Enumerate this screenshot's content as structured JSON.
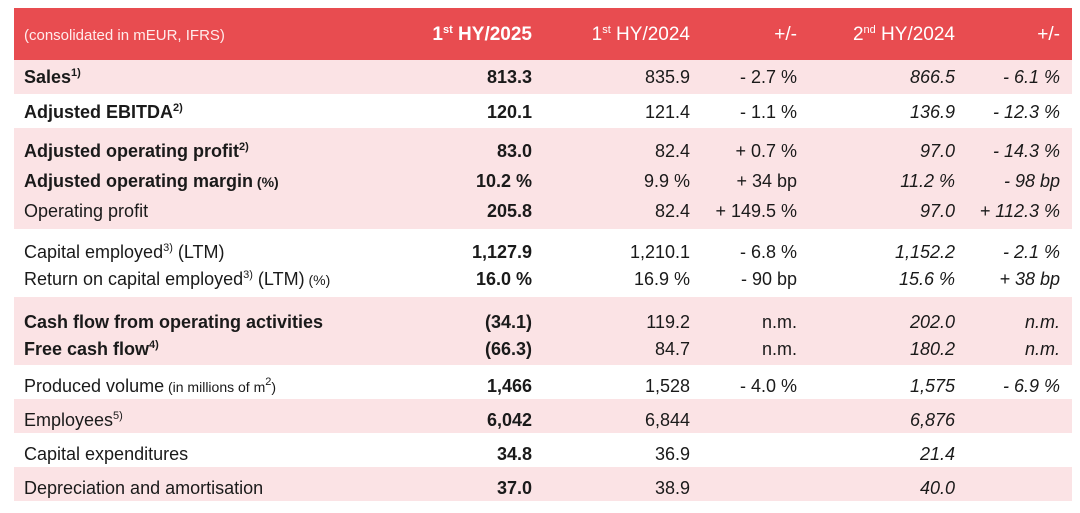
{
  "header": {
    "label": "(consolidated in mEUR, IFRS)",
    "col1_main": "1",
    "col1_sup": "st",
    "col1_rest": " HY/2025",
    "col2_main": "1",
    "col2_sup": "st",
    "col2_rest": " HY/2024",
    "col3": "+/-",
    "col4_main": "2",
    "col4_sup": "nd",
    "col4_rest": " HY/2024",
    "col5": "+/-"
  },
  "rows": [
    {
      "label": "Sales",
      "sup": "1)",
      "hy2025": "813.3",
      "hy2024": "835.9",
      "chg1": "- 2.7 %",
      "hy2024_2": "866.5",
      "chg2": "- 6.1 %"
    },
    {
      "label": "Adjusted EBITDA",
      "sup": "2)",
      "hy2025": "120.1",
      "hy2024": "121.4",
      "chg1": "- 1.1 %",
      "hy2024_2": "136.9",
      "chg2": "- 12.3 %"
    },
    {
      "label": "Adjusted operating profit",
      "sup": "2)",
      "hy2025": "83.0",
      "hy2024": "82.4",
      "chg1": "+ 0.7 %",
      "hy2024_2": "97.0",
      "chg2": "- 14.3 %"
    },
    {
      "label": "Adjusted operating margin",
      "unit": " (%)",
      "hy2025": "10.2 %",
      "hy2024": "9.9 %",
      "chg1": "+ 34 bp",
      "hy2024_2": "11.2 %",
      "chg2": "- 98 bp"
    },
    {
      "label": "Operating profit",
      "hy2025": "205.8",
      "hy2024": "82.4",
      "chg1": "+ 149.5 %",
      "hy2024_2": "97.0",
      "chg2": "+ 112.3 %"
    },
    {
      "label": "Capital employed",
      "sup": "3)",
      "after": " (LTM)",
      "hy2025": "1,127.9",
      "hy2024": "1,210.1",
      "chg1": "- 6.8 %",
      "hy2024_2": "1,152.2",
      "chg2": "- 2.1 %"
    },
    {
      "label": "Return on capital employed",
      "sup": "3)",
      "after": " (LTM)",
      "unit": " (%)",
      "hy2025": "16.0 %",
      "hy2024": "16.9 %",
      "chg1": "- 90 bp",
      "hy2024_2": "15.6 %",
      "chg2": "+ 38 bp"
    },
    {
      "label": "Cash flow from operating activities",
      "hy2025": "(34.1)",
      "hy2024": "119.2",
      "chg1": "n.m.",
      "hy2024_2": "202.0",
      "chg2": "n.m."
    },
    {
      "label": "Free cash flow",
      "sup": "4)",
      "hy2025": "(66.3)",
      "hy2024": "84.7",
      "chg1": "n.m.",
      "hy2024_2": "180.2",
      "chg2": "n.m."
    },
    {
      "label": "Produced volume",
      "note_pre": " (in millions of m",
      "note_sup": "2",
      "note_post": ")",
      "hy2025": "1,466",
      "hy2024": "1,528",
      "chg1": "- 4.0 %",
      "hy2024_2": "1,575",
      "chg2": "- 6.9 %"
    },
    {
      "label": "Employees",
      "sup": "5)",
      "hy2025": "6,042",
      "hy2024": "6,844",
      "chg1": "",
      "hy2024_2": "6,876",
      "chg2": ""
    },
    {
      "label": "Capital expenditures",
      "hy2025": "34.8",
      "hy2024": "36.9",
      "chg1": "",
      "hy2024_2": "21.4",
      "chg2": ""
    },
    {
      "label": "Depreciation and amortisation",
      "hy2025": "37.0",
      "hy2024": "38.9",
      "chg1": "",
      "hy2024_2": "40.0",
      "chg2": ""
    }
  ]
}
